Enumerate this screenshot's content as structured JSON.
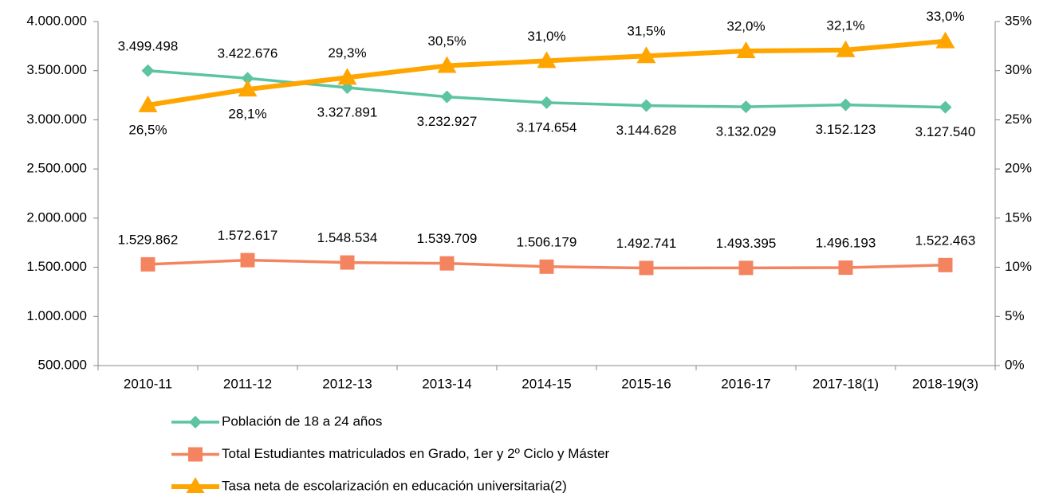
{
  "chart_data": {
    "type": "line",
    "categories": [
      "2010-11",
      "2011-12",
      "2012-13",
      "2013-14",
      "2014-15",
      "2015-16",
      "2016-17",
      "2017-18(1)",
      "2018-19(3)"
    ],
    "series": [
      {
        "name": "Población de 18 a 24 años",
        "color": "#5cc4a0",
        "marker": "diamond",
        "values": [
          3499498,
          3422676,
          3327891,
          3232927,
          3174654,
          3144628,
          3132029,
          3152123,
          3127540
        ],
        "value_labels": [
          "3.499.498",
          "3.422.676",
          "3.327.891",
          "3.232.927",
          "3.174.654",
          "3.144.628",
          "3.132.029",
          "3.152.123",
          "3.127.540"
        ]
      },
      {
        "name": "Total Estudiantes matriculados en Grado, 1er y 2º Ciclo y Máster",
        "color": "#f4845f",
        "marker": "square",
        "values": [
          1529862,
          1572617,
          1548534,
          1539709,
          1506179,
          1492741,
          1493395,
          1496193,
          1522463
        ],
        "value_labels": [
          "1.529.862",
          "1.572.617",
          "1.548.534",
          "1.539.709",
          "1.506.179",
          "1.492.741",
          "1.493.395",
          "1.496.193",
          "1.522.463"
        ]
      },
      {
        "name": "Tasa neta de escolarización en educación universitaria(2)",
        "color": "#ffa500",
        "marker": "triangle",
        "axis": "y2",
        "values": [
          26.5,
          28.1,
          29.3,
          30.5,
          31.0,
          31.5,
          32.0,
          32.1,
          33.0
        ],
        "value_labels": [
          "26,5%",
          "28,1%",
          "29,3%",
          "30,5%",
          "31,0%",
          "31,5%",
          "32,0%",
          "32,1%",
          "33,0%"
        ]
      }
    ],
    "ylim": [
      500000,
      4000000
    ],
    "yticks": [
      {
        "value": 500000,
        "label": "500.000"
      },
      {
        "value": 1000000,
        "label": "1.000.000"
      },
      {
        "value": 1500000,
        "label": "1.500.000"
      },
      {
        "value": 2000000,
        "label": "2.000.000"
      },
      {
        "value": 2500000,
        "label": "2.500.000"
      },
      {
        "value": 3000000,
        "label": "3.000.000"
      },
      {
        "value": 3500000,
        "label": "3.500.000"
      },
      {
        "value": 4000000,
        "label": "4.000.000"
      }
    ],
    "y2lim": [
      0,
      35
    ],
    "y2ticks": [
      {
        "value": 0,
        "label": "0%"
      },
      {
        "value": 5,
        "label": "5%"
      },
      {
        "value": 10,
        "label": "10%"
      },
      {
        "value": 15,
        "label": "15%"
      },
      {
        "value": 20,
        "label": "20%"
      },
      {
        "value": 25,
        "label": "25%"
      },
      {
        "value": 30,
        "label": "30%"
      },
      {
        "value": 35,
        "label": "35%"
      }
    ],
    "grid": false,
    "legend": "bottom"
  }
}
